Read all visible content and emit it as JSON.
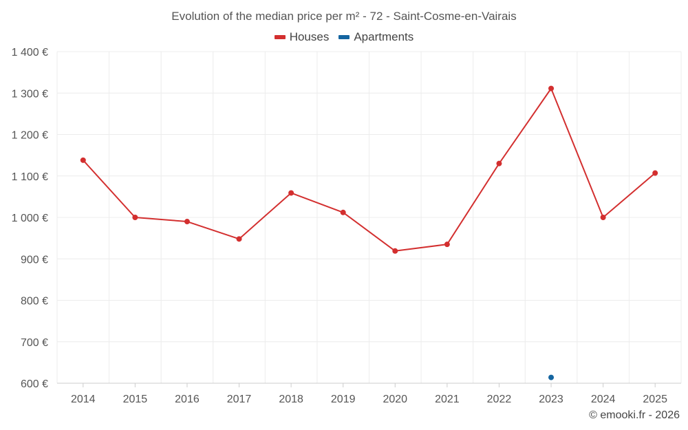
{
  "chart_data": {
    "type": "line",
    "title": "Evolution of the median price per m² - 72 - Saint-Cosme-en-Vairais",
    "xlabel": "",
    "ylabel": "",
    "categories": [
      "2014",
      "2015",
      "2016",
      "2017",
      "2018",
      "2019",
      "2020",
      "2021",
      "2022",
      "2023",
      "2024",
      "2025"
    ],
    "ylim": [
      600,
      1400
    ],
    "yticks": [
      600,
      700,
      800,
      900,
      1000,
      1100,
      1200,
      1300,
      1400
    ],
    "ytick_labels": [
      "600 €",
      "700 €",
      "800 €",
      "900 €",
      "1 000 €",
      "1 100 €",
      "1 200 €",
      "1 300 €",
      "1 400 €"
    ],
    "grid": true,
    "legend_position": "top-center",
    "series": [
      {
        "name": "Houses",
        "color": "#d32f2f",
        "values": [
          1138,
          1000,
          990,
          948,
          1059,
          1012,
          919,
          935,
          1130,
          1311,
          1000,
          1107
        ]
      },
      {
        "name": "Apartments",
        "color": "#1565a0",
        "values": [
          null,
          null,
          null,
          null,
          null,
          null,
          null,
          null,
          null,
          614,
          null,
          null
        ]
      }
    ]
  },
  "footer": {
    "credit": "© emooki.fr - 2026"
  }
}
